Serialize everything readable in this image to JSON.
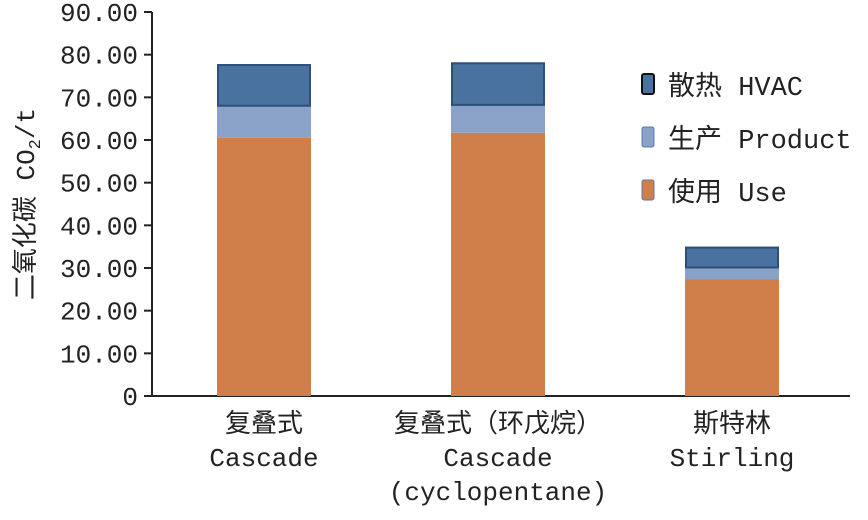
{
  "chart_data": {
    "type": "bar",
    "stacked": true,
    "title": "",
    "xlabel": "",
    "ylabel": "二氧化碳 CO2/t",
    "ylabel_parts": {
      "main": "二氧化碳 CO",
      "sub": "2",
      "tail": "/t"
    },
    "ylim": [
      0,
      90
    ],
    "yticks": [
      "0",
      "10.00",
      "20.00",
      "30.00",
      "40.00",
      "50.00",
      "60.00",
      "70.00",
      "80.00",
      "90.00"
    ],
    "categories": [
      [
        "复叠式",
        "Cascade"
      ],
      [
        "复叠式（环戊烷）",
        "Cascade",
        "(cyclopentane)"
      ],
      [
        "斯特林",
        "Stirling"
      ]
    ],
    "series": [
      {
        "name": "使用 Use",
        "color": "#d17f4a",
        "values": [
          60.5,
          61.7,
          27.3
        ]
      },
      {
        "name": "生产 Product",
        "color": "#8aa2c8",
        "values": [
          7.3,
          6.3,
          2.6
        ]
      },
      {
        "name": "散热 HVAC",
        "color": "#4a72a0",
        "values": [
          10.0,
          10.2,
          5.1
        ]
      }
    ],
    "legend_order": [
      2,
      1,
      0
    ],
    "legend": "right",
    "grid": false
  }
}
